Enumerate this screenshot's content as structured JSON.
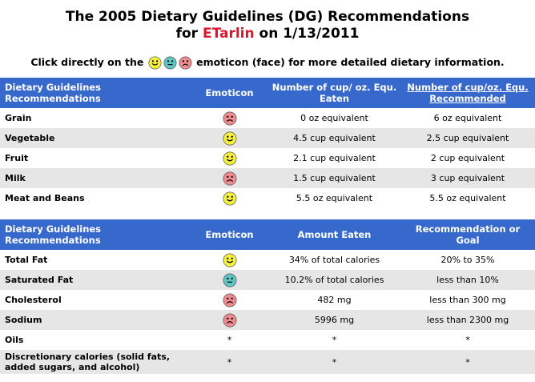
{
  "title_line1": "The 2005 Dietary Guidelines (DG) Recommendations",
  "title_for": "for",
  "title_user": "ETarlin",
  "title_date": "on 1/13/2011",
  "intro_before": "Click directly on the",
  "intro_after": "emoticon (face) for more detailed dietary information.",
  "colors": {
    "header_bg": "#3769cc",
    "user_name": "#e0142d",
    "happy": "#f5f03c",
    "neutral": "#5ec5c2",
    "sad": "#ef8a8f",
    "alt_row": "#e6e6e6"
  },
  "table1": {
    "headers": {
      "guideline": "Dietary Guidelines Recommendations",
      "emoticon": "Emoticon",
      "eaten": "Number of cup/ oz. Equ. Eaten",
      "recommended": "Number of cup/oz. Equ. Recommended"
    },
    "rows": [
      {
        "name": "Grain",
        "face": "sad",
        "eaten": "0 oz equivalent",
        "recommended": "6 oz equivalent"
      },
      {
        "name": "Vegetable",
        "face": "happy",
        "eaten": "4.5 cup equivalent",
        "recommended": "2.5 cup equivalent"
      },
      {
        "name": "Fruit",
        "face": "happy",
        "eaten": "2.1 cup equivalent",
        "recommended": "2 cup equivalent"
      },
      {
        "name": "Milk",
        "face": "sad",
        "eaten": "1.5 cup equivalent",
        "recommended": "3 cup equivalent"
      },
      {
        "name": "Meat and Beans",
        "face": "happy",
        "eaten": "5.5 oz equivalent",
        "recommended": "5.5 oz equivalent"
      }
    ]
  },
  "table2": {
    "headers": {
      "guideline": "Dietary Guidelines Recommendations",
      "emoticon": "Emoticon",
      "eaten": "Amount Eaten",
      "recommended": "Recommendation or Goal"
    },
    "rows": [
      {
        "name": "Total Fat",
        "face": "happy",
        "eaten": "34% of total calories",
        "recommended": "20% to 35%"
      },
      {
        "name": "Saturated Fat",
        "face": "neutral",
        "eaten": "10.2% of total calories",
        "recommended": "less than 10%"
      },
      {
        "name": "Cholesterol",
        "face": "sad",
        "eaten": "482 mg",
        "recommended": "less than 300 mg"
      },
      {
        "name": "Sodium",
        "face": "sad",
        "eaten": "5996 mg",
        "recommended": "less than 2300 mg"
      },
      {
        "name": "Oils",
        "face": "*",
        "eaten": "*",
        "recommended": "*"
      },
      {
        "name": "Discretionary calories (solid fats, added sugars, and alcohol)",
        "face": "*",
        "eaten": "*",
        "recommended": "*"
      }
    ]
  }
}
